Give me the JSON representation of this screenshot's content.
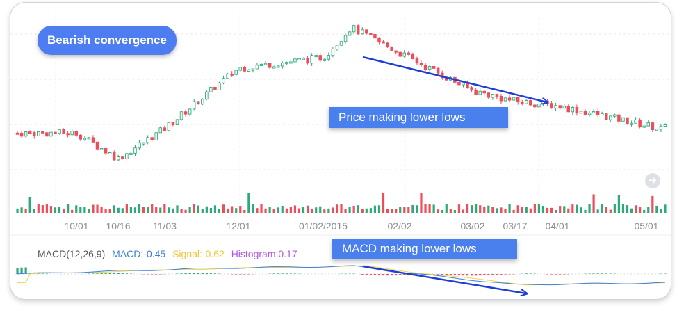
{
  "title": "Bearish convergence",
  "callouts": {
    "price": "Price making lower lows",
    "macd": "MACD making lower lows"
  },
  "x_labels": [
    "10/01",
    "10/16",
    "11/03",
    "12/01",
    "01/02/2015",
    "02/02",
    "03/02",
    "03/17",
    "04/01",
    "05/01"
  ],
  "macd_legend": {
    "name": "MACD(12,26,9)",
    "macd": "MACD:-0.45",
    "signal": "Signal:-0.62",
    "histogram": "Histogram:0.17"
  },
  "icons": {
    "next": "chevron-right-icon"
  },
  "colors": {
    "up": "#2eaa7a",
    "down": "#ee4d5a",
    "macd_line": "#3d7fd8",
    "signal_line": "#f2d34c",
    "histogram_label": "#b157e0",
    "arrow": "#1d3fd6",
    "accent": "#4d7df0"
  },
  "chart_data": {
    "type": "candlestick",
    "x_tick_labels": [
      "10/01",
      "10/16",
      "11/03",
      "12/01",
      "01/02/2015",
      "02/02",
      "03/02",
      "03/17",
      "04/01",
      "05/01"
    ],
    "price_close_trend": [
      {
        "x": "10/01",
        "y": 0.22
      },
      {
        "x": "10/16",
        "y": 0.05
      },
      {
        "x": "11/03",
        "y": 0.25
      },
      {
        "x": "12/01",
        "y": 0.65
      },
      {
        "x": "01/02/2015",
        "y": 0.72
      },
      {
        "x": "01/15",
        "y": 0.92
      },
      {
        "x": "02/02",
        "y": 0.75
      },
      {
        "x": "03/02",
        "y": 0.5
      },
      {
        "x": "03/17",
        "y": 0.43
      },
      {
        "x": "04/01",
        "y": 0.4
      },
      {
        "x": "05/01",
        "y": 0.25
      }
    ],
    "macd_trend": [
      {
        "x": "10/01",
        "y": 0.0
      },
      {
        "x": "12/01",
        "y": 0.3
      },
      {
        "x": "01/15",
        "y": 0.4
      },
      {
        "x": "02/02",
        "y": 0.1
      },
      {
        "x": "03/17",
        "y": -0.55
      },
      {
        "x": "05/01",
        "y": -0.45
      }
    ],
    "annotations": [
      "Price making lower lows",
      "MACD making lower lows"
    ],
    "grid": true
  }
}
